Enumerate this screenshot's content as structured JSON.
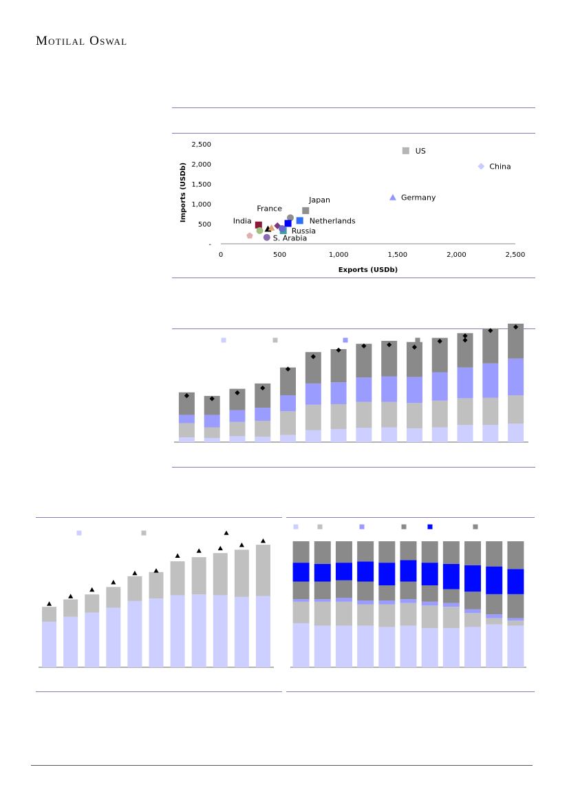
{
  "header": {
    "brand": "Motilal Oswal"
  },
  "colors": {
    "light_blue": "#cccfff",
    "light_gray": "#c0c0c0",
    "mid_blue": "#9a9cff",
    "dark_gray": "#8a8a8a",
    "bright_blue": "#0008ff",
    "black": "#000000"
  },
  "chart_data": [
    {
      "type": "scatter",
      "xlabel": "Exports (USDb)",
      "ylabel": "Imports (USDb)",
      "xlim": [
        0,
        2500
      ],
      "ylim": [
        0,
        2500
      ],
      "xticks": [
        "0",
        "500",
        "1,000",
        "1,500",
        "2,000",
        "2,500"
      ],
      "yticks": [
        "-",
        "500",
        "1,000",
        "1,500",
        "2,000",
        "2,500"
      ],
      "grid": false,
      "points": [
        {
          "label": "US",
          "x": 1570,
          "y": 2330,
          "marker": "square",
          "color": "#b5b5b5"
        },
        {
          "label": "China",
          "x": 2210,
          "y": 1940,
          "marker": "diamond",
          "color": "#c9ccff"
        },
        {
          "label": "Germany",
          "x": 1460,
          "y": 1160,
          "marker": "triangle",
          "color": "#8f97ff"
        },
        {
          "label": "Japan",
          "x": 720,
          "y": 830,
          "marker": "square",
          "color": "#8f8f8f"
        },
        {
          "label": "Netherlands",
          "x": 670,
          "y": 580,
          "marker": "square",
          "color": "#2f6dff"
        },
        {
          "label": "Russia",
          "x": 530,
          "y": 330,
          "marker": "square",
          "color": "#3aa0a8"
        },
        {
          "label": "France",
          "x": 590,
          "y": 650,
          "marker": "circle",
          "color": "#8e8e8e"
        },
        {
          "label": "India",
          "x": 320,
          "y": 470,
          "marker": "square",
          "color": "#8b1a3a"
        },
        {
          "label": "S. Arabia",
          "x": 390,
          "y": 160,
          "marker": "circle",
          "color": "#8a6bb0"
        },
        {
          "label": "",
          "x": 245,
          "y": 200,
          "marker": "pentagon",
          "color": "#e0b0b0"
        },
        {
          "label": "",
          "x": 330,
          "y": 330,
          "marker": "circle",
          "color": "#9fc080"
        },
        {
          "label": "",
          "x": 400,
          "y": 370,
          "marker": "triangle",
          "color": "#000000"
        },
        {
          "label": "",
          "x": 430,
          "y": 400,
          "marker": "triangle",
          "color": "#e8a070"
        },
        {
          "label": "",
          "x": 480,
          "y": 450,
          "marker": "diamond",
          "color": "#7a3a7a"
        },
        {
          "label": "",
          "x": 570,
          "y": 510,
          "marker": "square",
          "color": "#0000ff"
        },
        {
          "label": "",
          "x": 520,
          "y": 380,
          "marker": "circle",
          "color": "#6a6acd"
        }
      ]
    },
    {
      "type": "bar",
      "stacked": true,
      "legend_placement": "top",
      "series": [
        {
          "values": [
            8,
            7,
            10,
            9,
            12,
            20,
            22,
            24,
            25,
            23,
            25,
            29,
            29,
            31
          ]
        },
        {
          "values": [
            24,
            18,
            24,
            27,
            40,
            43,
            42,
            44,
            43,
            43,
            45,
            45,
            46,
            48
          ]
        },
        {
          "values": [
            14,
            21,
            20,
            22,
            27,
            36,
            37,
            41,
            43,
            44,
            48,
            52,
            58,
            62
          ]
        },
        {
          "values": [
            38,
            32,
            36,
            41,
            47,
            53,
            56,
            57,
            60,
            59,
            58,
            58,
            59,
            59
          ]
        }
      ],
      "markers": {
        "marker": "diamond",
        "values": [
          76,
          71,
          81,
          89,
          121,
          142,
          153,
          160,
          162,
          158,
          168,
          177,
          186,
          192
        ]
      },
      "ylim": [
        0,
        200
      ]
    },
    {
      "type": "bar",
      "stacked": true,
      "legend_placement": "top",
      "series": [
        {
          "values": [
            55,
            61,
            66,
            72,
            80,
            83,
            87,
            88,
            87,
            85,
            86
          ]
        },
        {
          "values": [
            18,
            21,
            22,
            25,
            30,
            32,
            41,
            45,
            51,
            57,
            62
          ]
        }
      ],
      "markers": {
        "marker": "triangle",
        "values": [
          75,
          84,
          92,
          101,
          112,
          115,
          133,
          139,
          142,
          146,
          151
        ]
      },
      "ylim": [
        0,
        150
      ]
    },
    {
      "type": "bar",
      "stacked": true,
      "percent": true,
      "legend_placement": "top",
      "series": [
        {
          "values": [
            35,
            33,
            33,
            33,
            32,
            33,
            31,
            31,
            32,
            34,
            33
          ]
        },
        {
          "values": [
            17,
            19,
            19,
            17,
            18,
            18,
            18,
            17,
            11,
            5,
            4
          ]
        },
        {
          "values": [
            2,
            2,
            3,
            3,
            3,
            3,
            3,
            3,
            3,
            3,
            2
          ]
        },
        {
          "values": [
            14,
            14,
            14,
            15,
            12,
            14,
            13,
            11,
            14,
            16,
            19
          ]
        },
        {
          "values": [
            15,
            14,
            14,
            16,
            18,
            17,
            18,
            20,
            21,
            22,
            20
          ]
        },
        {
          "values": [
            17,
            18,
            17,
            16,
            17,
            15,
            17,
            18,
            19,
            20,
            22
          ]
        }
      ]
    }
  ]
}
